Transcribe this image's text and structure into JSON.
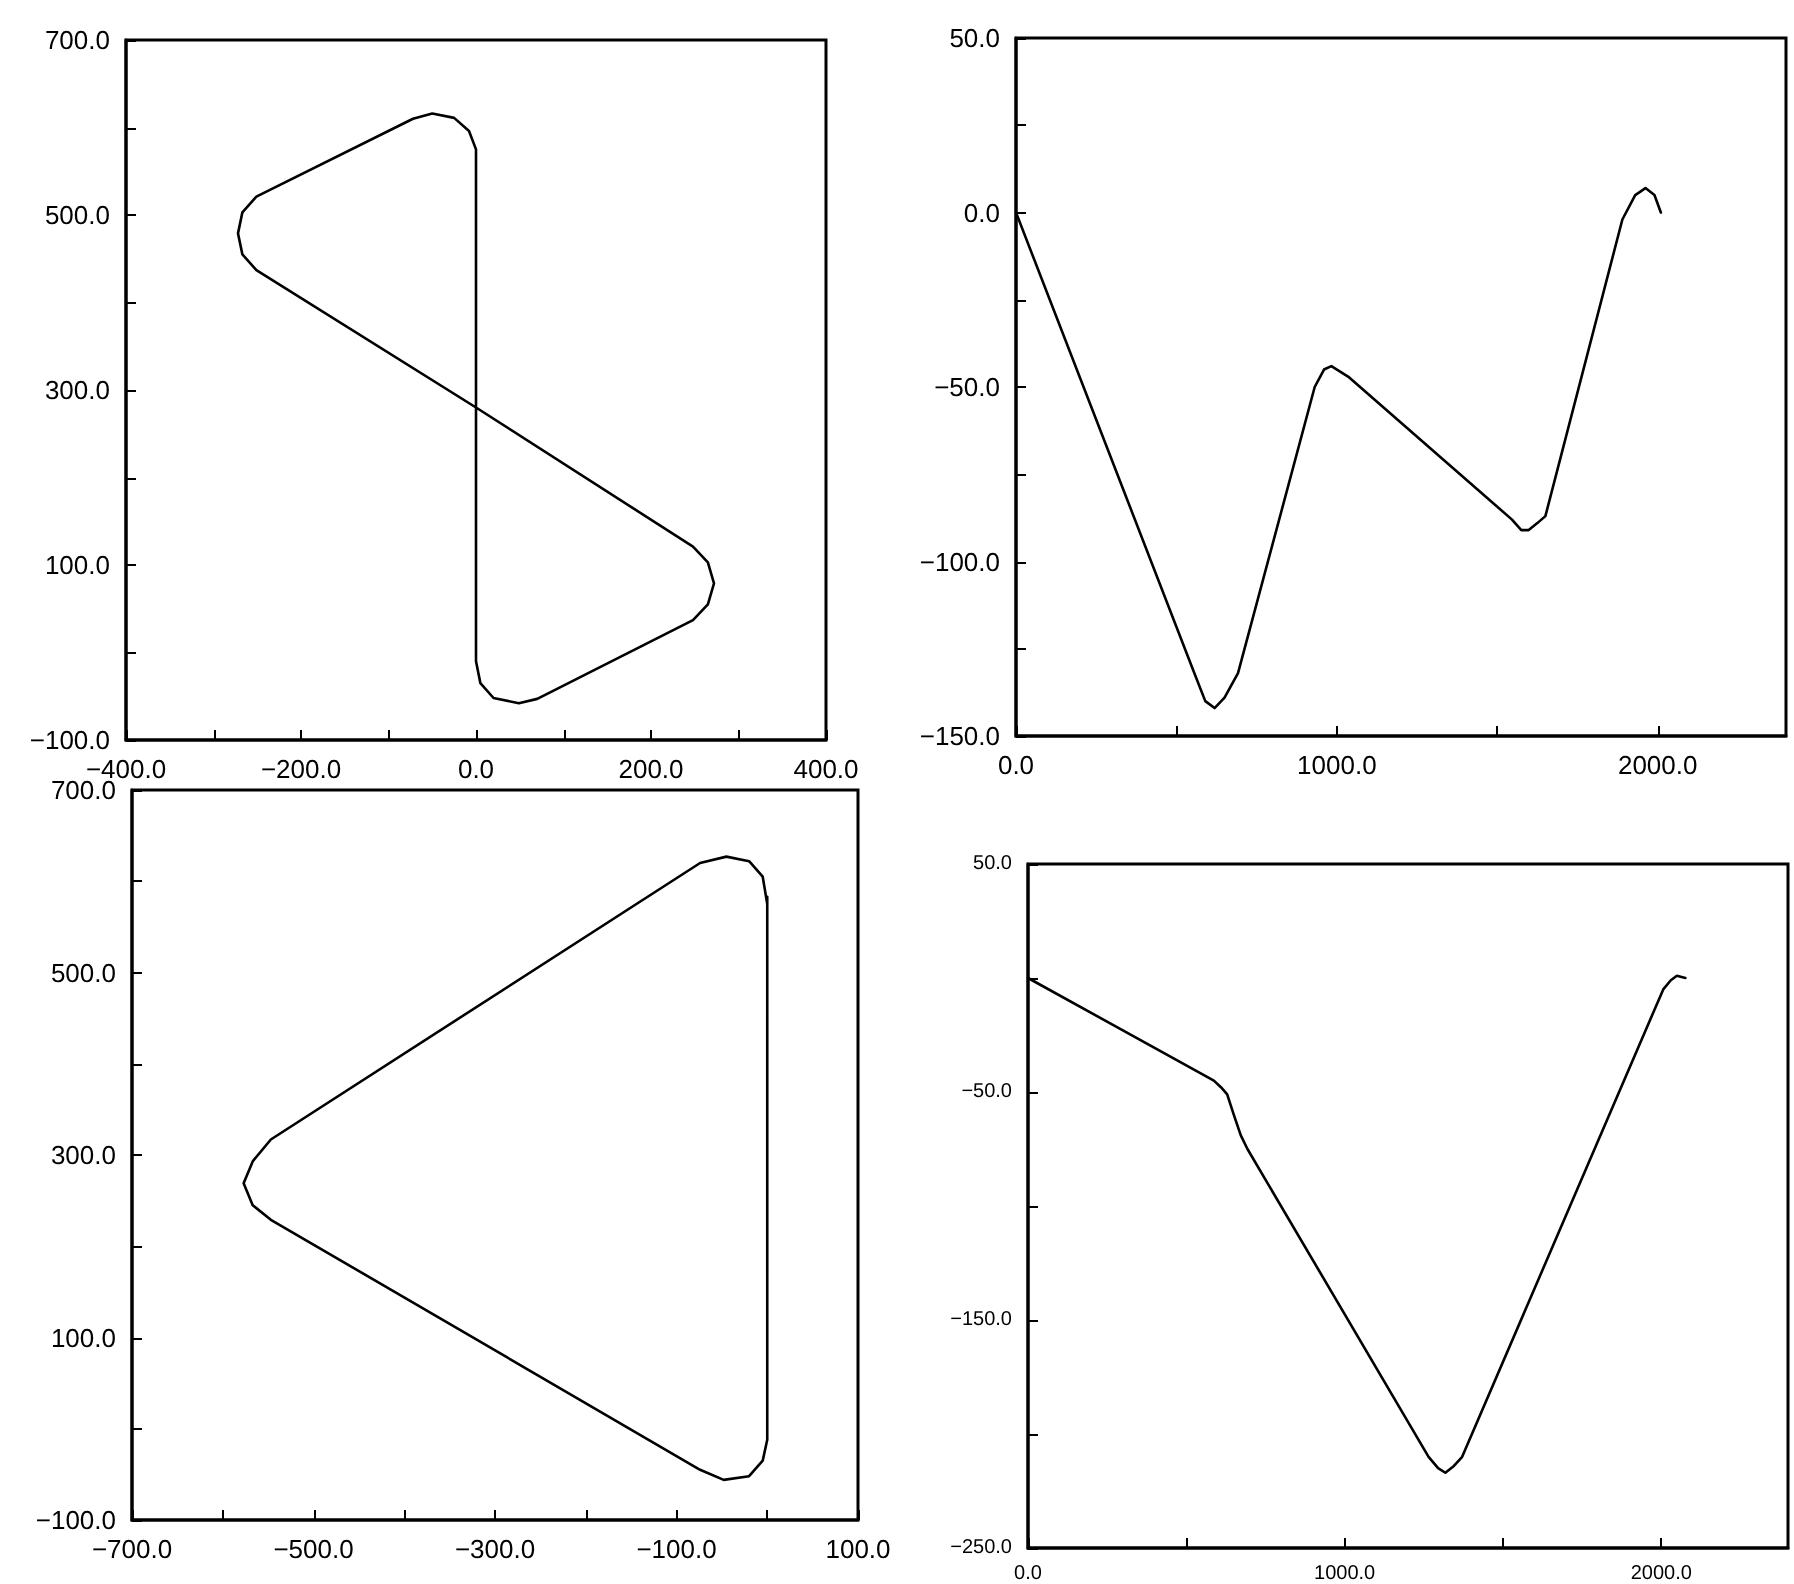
{
  "chart_data": [
    {
      "type": "line",
      "marker": "none",
      "grid": false,
      "xlim": [
        -400,
        400
      ],
      "ylim": [
        -100,
        700
      ],
      "xticks": [
        {
          "value": -400,
          "label": "−400.0"
        },
        {
          "value": -300,
          "label": null
        },
        {
          "value": -200,
          "label": "−200.0"
        },
        {
          "value": -100,
          "label": null
        },
        {
          "value": 0,
          "label": "0.0"
        },
        {
          "value": 100,
          "label": null
        },
        {
          "value": 200,
          "label": "200.0"
        },
        {
          "value": 300,
          "label": null
        },
        {
          "value": 400,
          "label": "400.0"
        }
      ],
      "yticks": [
        {
          "value": -100,
          "label": "−100.0"
        },
        {
          "value": 0,
          "label": null
        },
        {
          "value": 100,
          "label": "100.0"
        },
        {
          "value": 200,
          "label": null
        },
        {
          "value": 300,
          "label": "300.0"
        },
        {
          "value": 400,
          "label": null
        },
        {
          "value": 500,
          "label": "500.0"
        },
        {
          "value": 600,
          "label": null
        },
        {
          "value": 700,
          "label": "700.0"
        }
      ],
      "series": [
        {
          "color": "#000000",
          "x": [
            0,
            0,
            0,
            5,
            20,
            49,
            70,
            248,
            265,
            272,
            265,
            248,
            0,
            -251,
            -267,
            -272,
            -267,
            -251,
            -72,
            -50,
            -25,
            -8,
            0,
            0
          ],
          "values": [
            563,
            0,
            -10,
            -35,
            -52,
            -58,
            -53,
            37,
            55,
            79,
            103,
            121,
            280,
            437,
            455,
            479,
            503,
            521,
            610,
            616,
            611,
            596,
            575,
            555
          ]
        }
      ]
    },
    {
      "type": "line",
      "marker": "none",
      "grid": false,
      "xlim": [
        0,
        2400
      ],
      "ylim": [
        -150,
        50
      ],
      "xticks": [
        {
          "value": 0,
          "label": "0.0"
        },
        {
          "value": 500,
          "label": null
        },
        {
          "value": 1000,
          "label": "1000.0"
        },
        {
          "value": 1500,
          "label": null
        },
        {
          "value": 2000,
          "label": "2000.0"
        }
      ],
      "yticks": [
        {
          "value": -150,
          "label": "−150.0"
        },
        {
          "value": -125,
          "label": null
        },
        {
          "value": -100,
          "label": "−100.0"
        },
        {
          "value": -75,
          "label": null
        },
        {
          "value": -50,
          "label": "−50.0"
        },
        {
          "value": -25,
          "label": null
        },
        {
          "value": 0,
          "label": "0.0"
        },
        {
          "value": 25,
          "label": null
        },
        {
          "value": 50,
          "label": "50.0"
        }
      ],
      "series": [
        {
          "color": "#000000",
          "x": [
            0,
            556,
            590,
            619,
            650,
            692,
            931,
            960,
            983,
            1035,
            1546,
            1575,
            1598,
            1625,
            1650,
            1890,
            1930,
            1962,
            1990,
            2010
          ],
          "values": [
            0,
            -132,
            -140,
            -142,
            -139,
            -132,
            -50,
            -45,
            -44,
            -47,
            -88,
            -91,
            -91,
            -89,
            -87,
            -2,
            5,
            7,
            5,
            0
          ]
        }
      ]
    },
    {
      "type": "line",
      "marker": "none",
      "grid": false,
      "xlim": [
        -700,
        100
      ],
      "ylim": [
        -100,
        700
      ],
      "xticks": [
        {
          "value": -700,
          "label": "−700.0"
        },
        {
          "value": -600,
          "label": null
        },
        {
          "value": -500,
          "label": "−500.0"
        },
        {
          "value": -400,
          "label": null
        },
        {
          "value": -300,
          "label": "−300.0"
        },
        {
          "value": -200,
          "label": null
        },
        {
          "value": -100,
          "label": "−100.0"
        },
        {
          "value": 0,
          "label": null
        },
        {
          "value": 100,
          "label": "100.0"
        }
      ],
      "yticks": [
        {
          "value": -100,
          "label": "−100.0"
        },
        {
          "value": 0,
          "label": null
        },
        {
          "value": 100,
          "label": "100.0"
        },
        {
          "value": 200,
          "label": null
        },
        {
          "value": 300,
          "label": "300.0"
        },
        {
          "value": 400,
          "label": null
        },
        {
          "value": 500,
          "label": "500.0"
        },
        {
          "value": 600,
          "label": null
        },
        {
          "value": 700,
          "label": "700.0"
        }
      ],
      "series": [
        {
          "color": "#000000",
          "x": [
            0,
            0,
            -5,
            -20,
            -48,
            -74,
            -547,
            -567,
            -577,
            -567,
            -547,
            -74,
            -45,
            -20,
            -5,
            0
          ],
          "values": [
            583,
            -12,
            -35,
            -52,
            -56,
            -45,
            229,
            245,
            269,
            293,
            317,
            620,
            627,
            622,
            605,
            575
          ]
        }
      ]
    },
    {
      "type": "line",
      "marker": "none",
      "grid": false,
      "xlim": [
        0,
        2400
      ],
      "ylim": [
        -250,
        50
      ],
      "xticks": [
        {
          "value": 0,
          "label": "0.0"
        },
        {
          "value": 500,
          "label": null
        },
        {
          "value": 1000,
          "label": "1000.0"
        },
        {
          "value": 1500,
          "label": null
        },
        {
          "value": 2000,
          "label": "2000.0"
        }
      ],
      "yticks": [
        {
          "value": -250,
          "label": "−250.0"
        },
        {
          "value": -200,
          "label": null
        },
        {
          "value": -150,
          "label": "−150.0"
        },
        {
          "value": -100,
          "label": null
        },
        {
          "value": -50,
          "label": "−50.0"
        },
        {
          "value": 0,
          "label": null
        },
        {
          "value": 50,
          "label": "50.0"
        }
      ],
      "series": [
        {
          "color": "#000000",
          "x": [
            0,
            587,
            610,
            629,
            650,
            672,
            693,
            1265,
            1295,
            1318,
            1345,
            1371,
            2006,
            2030,
            2049,
            2076
          ],
          "values": [
            0,
            -45,
            -48,
            -51,
            -60,
            -69,
            -75,
            -210,
            -215,
            -217,
            -214,
            -210,
            -5,
            -1,
            1,
            0
          ]
        }
      ]
    }
  ]
}
